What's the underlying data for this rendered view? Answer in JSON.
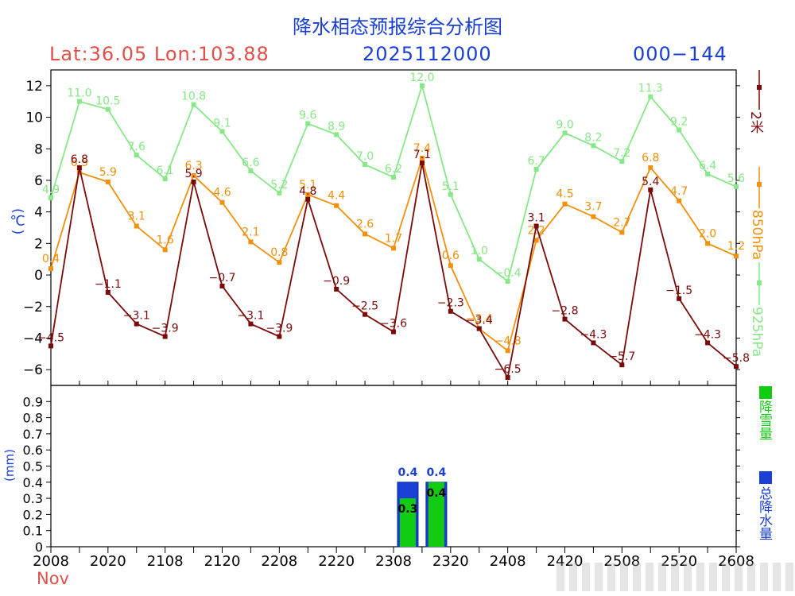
{
  "header": {
    "title": "降水相态预报综合分析图",
    "location": "Lat:36.05 Lon:103.88",
    "init_time": "2025112000",
    "forecast_range": "000−144"
  },
  "axis": {
    "month": "Nov",
    "temp_unit": "(℃)",
    "precip_unit": "(mm)"
  },
  "legend": {
    "t2m": "2米",
    "t850": "850hPa",
    "t925": "925hPa",
    "snow": "降雪量",
    "total": "总降水量"
  },
  "colors": {
    "t2m": "#7a0a0a",
    "t850": "#f0900c",
    "t925": "#86e886",
    "snow": "#12cc12",
    "total": "#1a3fd6",
    "axis": "#000000"
  },
  "chart_data": [
    {
      "type": "line",
      "title": "降水相态预报综合分析图",
      "ylabel": "(℃)",
      "ylim": [
        -7,
        13
      ],
      "yticks": [
        -6,
        -4,
        -2,
        0,
        2,
        4,
        6,
        8,
        10,
        12
      ],
      "x": [
        0,
        12,
        24,
        36,
        48,
        60,
        72,
        84,
        96,
        108,
        120,
        132,
        144,
        156,
        168,
        180,
        192,
        204,
        216,
        228,
        240,
        252,
        264,
        276,
        288
      ],
      "series": [
        {
          "name": "2米",
          "color_key": "t2m",
          "values": [
            -4.5,
            6.8,
            -1.1,
            -3.1,
            -3.9,
            5.9,
            -0.7,
            -3.1,
            -3.9,
            4.8,
            -0.9,
            -2.5,
            -3.6,
            7.1,
            -2.3,
            -3.4,
            -6.5,
            3.1,
            -2.8,
            -4.3,
            -5.7,
            5.4,
            -1.5,
            -4.3,
            -5.8
          ]
        },
        {
          "name": "850hPa",
          "color_key": "t850",
          "values": [
            0.4,
            6.5,
            5.9,
            3.1,
            1.6,
            6.3,
            4.6,
            2.1,
            0.8,
            5.1,
            4.4,
            2.6,
            1.7,
            7.4,
            0.6,
            -3.4,
            -4.8,
            2.2,
            4.5,
            3.7,
            2.7,
            6.8,
            4.7,
            2.0,
            1.2
          ]
        },
        {
          "name": "925hPa",
          "color_key": "t925",
          "values": [
            4.9,
            11.0,
            10.5,
            7.6,
            6.1,
            10.8,
            9.1,
            6.6,
            5.2,
            9.6,
            8.9,
            7.0,
            6.2,
            12.0,
            5.1,
            1.0,
            -0.4,
            6.7,
            9.0,
            8.2,
            7.2,
            11.3,
            9.2,
            6.4,
            5.6
          ]
        }
      ]
    },
    {
      "type": "bar",
      "ylabel": "(mm)",
      "ylim": [
        0,
        1.0
      ],
      "yticks": [
        0,
        0.1,
        0.2,
        0.3,
        0.4,
        0.5,
        0.6,
        0.7,
        0.8,
        0.9
      ],
      "xticks": [
        "2008",
        "2020",
        "2108",
        "2120",
        "2208",
        "2220",
        "2308",
        "2320",
        "2408",
        "2420",
        "2508",
        "2520",
        "2608"
      ],
      "bars": [
        {
          "x": 150,
          "total": 0.4,
          "snow": 0.3,
          "total_label": "0.4",
          "snow_label": "0.3"
        },
        {
          "x": 162,
          "total": 0.4,
          "snow": 0.4,
          "total_label": "0.4",
          "snow_label": "0.4"
        }
      ]
    }
  ]
}
